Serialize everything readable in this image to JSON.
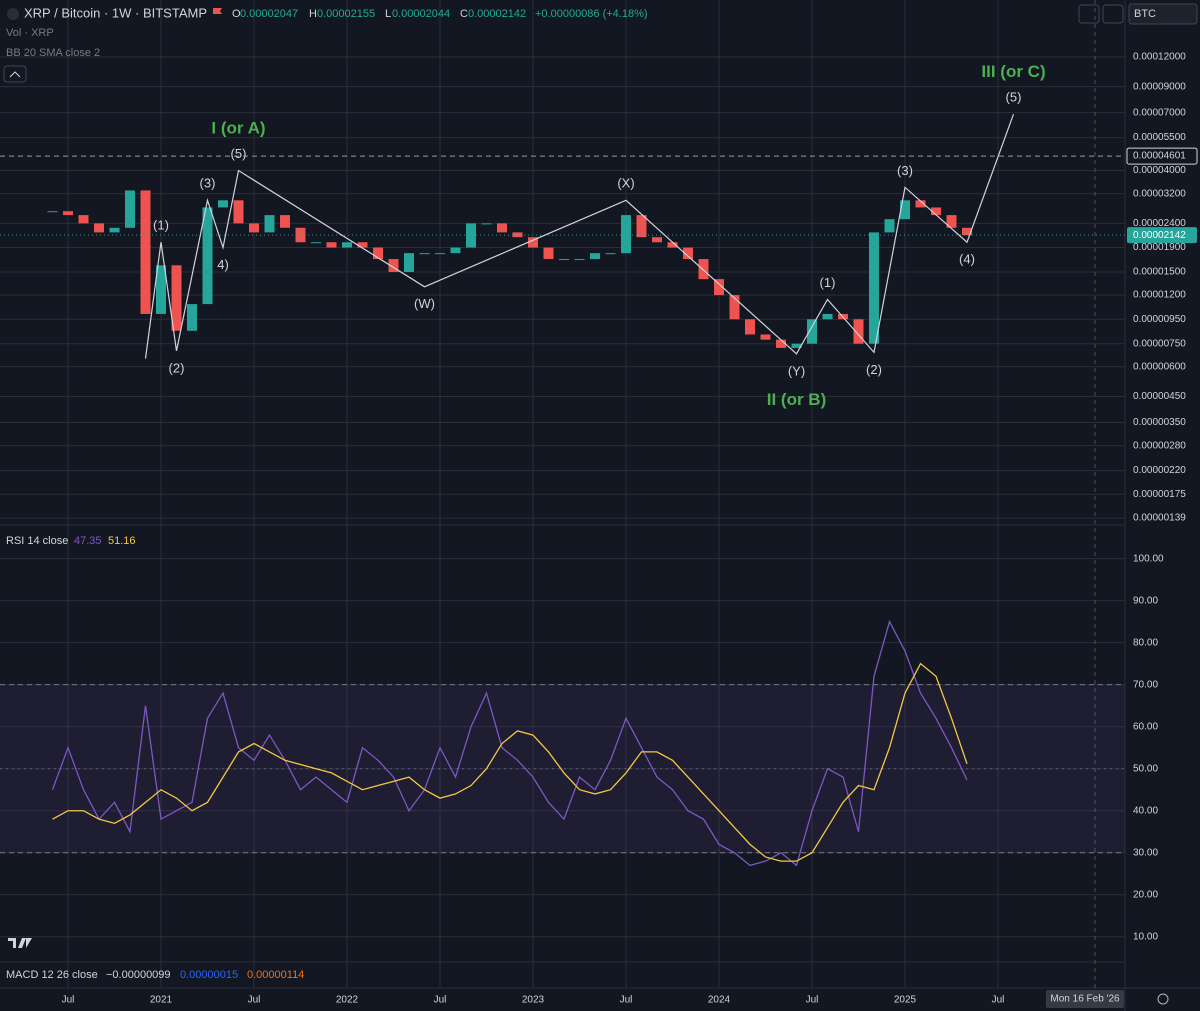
{
  "header": {
    "symbol": "XRP / Bitcoin · 1W · BITSTAMP",
    "ohlc": [
      {
        "key": "O",
        "value": "0.00002047"
      },
      {
        "key": "H",
        "value": "0.00002155"
      },
      {
        "key": "L",
        "value": "0.00002044"
      },
      {
        "key": "C",
        "value": "0.00002142"
      }
    ],
    "change": "+0.00000086 (+4.18%)",
    "indicators": [
      "Vol · XRP",
      "BB 20 SMA close 2"
    ],
    "currency": "BTC",
    "macd": {
      "title": "MACD 12 26 close",
      "values": [
        "−0.00000099",
        "0.00000015",
        "0.00000114"
      ]
    },
    "crosshair_label": "Mon 16 Feb '26"
  },
  "chart_data": [
    {
      "type": "candle-line",
      "log": true,
      "grid": true,
      "x": [
        "2020-06",
        "2020-07",
        "2020-08",
        "2020-09",
        "2020-10",
        "2020-11",
        "2020-12",
        "2021-01",
        "2021-02",
        "2021-03",
        "2021-04",
        "2021-05",
        "2021-06",
        "2021-07",
        "2021-08",
        "2021-09",
        "2021-10",
        "2021-11",
        "2021-12",
        "2022-01",
        "2022-02",
        "2022-03",
        "2022-04",
        "2022-05",
        "2022-06",
        "2022-07",
        "2022-08",
        "2022-09",
        "2022-10",
        "2022-11",
        "2022-12",
        "2023-01",
        "2023-02",
        "2023-03",
        "2023-04",
        "2023-05",
        "2023-06",
        "2023-07",
        "2023-08",
        "2023-09",
        "2023-10",
        "2023-11",
        "2023-12",
        "2024-01",
        "2024-02",
        "2024-03",
        "2024-04",
        "2024-05",
        "2024-06",
        "2024-07",
        "2024-08",
        "2024-09",
        "2024-10",
        "2024-11",
        "2024-12",
        "2025-01",
        "2025-02",
        "2025-03",
        "2025-04",
        "2025-05"
      ],
      "values": [
        2.7e-05,
        2.6e-05,
        2.4e-05,
        2.2e-05,
        2.3e-05,
        3.3e-05,
        1e-05,
        1.6e-05,
        8.5e-06,
        1.1e-05,
        2.8e-05,
        3e-05,
        2.4e-05,
        2.2e-05,
        2.6e-05,
        2.3e-05,
        2e-05,
        2e-05,
        1.9e-05,
        2e-05,
        1.9e-05,
        1.7e-05,
        1.5e-05,
        1.8e-05,
        1.8e-05,
        1.8e-05,
        1.9e-05,
        2.4e-05,
        2.4e-05,
        2.2e-05,
        2.1e-05,
        1.9e-05,
        1.7e-05,
        1.7e-05,
        1.7e-05,
        1.8e-05,
        1.8e-05,
        2.6e-05,
        2.1e-05,
        2e-05,
        1.9e-05,
        1.7e-05,
        1.4e-05,
        1.2e-05,
        9.5e-06,
        8.2e-06,
        7.8e-06,
        7.2e-06,
        7.5e-06,
        9.5e-06,
        1e-05,
        9.5e-06,
        7.5e-06,
        2.2e-05,
        2.5e-05,
        3e-05,
        2.8e-05,
        2.6e-05,
        2.3e-05,
        2.142e-05
      ],
      "up_color": "#26a69a",
      "down_color": "#ef5350",
      "xlim": [
        "2020-03",
        "2026-03"
      ],
      "xticks": [
        {
          "value": "2020-07",
          "label": "Jul"
        },
        {
          "value": "2021-01",
          "label": "2021"
        },
        {
          "value": "2021-07",
          "label": "Jul"
        },
        {
          "value": "2022-01",
          "label": "2022"
        },
        {
          "value": "2022-07",
          "label": "Jul"
        },
        {
          "value": "2023-01",
          "label": "2023"
        },
        {
          "value": "2023-07",
          "label": "Jul"
        },
        {
          "value": "2024-01",
          "label": "2024"
        },
        {
          "value": "2024-07",
          "label": "Jul"
        },
        {
          "value": "2025-01",
          "label": "2025"
        },
        {
          "value": "2025-07",
          "label": "Jul"
        }
      ],
      "ylim": [
        1.3e-06,
        0.000208
      ],
      "yticks": [
        {
          "value": 0.00012,
          "label": "0.00012000"
        },
        {
          "value": 9e-05,
          "label": "0.00009000"
        },
        {
          "value": 7e-05,
          "label": "0.00007000"
        },
        {
          "value": 5.5e-05,
          "label": "0.00005500"
        },
        {
          "value": 4e-05,
          "label": "0.00004000"
        },
        {
          "value": 3.2e-05,
          "label": "0.00003200"
        },
        {
          "value": 2.4e-05,
          "label": "0.00002400"
        },
        {
          "value": 1.9e-05,
          "label": "0.00001900"
        },
        {
          "value": 1.5e-05,
          "label": "0.00001500"
        },
        {
          "value": 1.2e-05,
          "label": "0.00001200"
        },
        {
          "value": 9.5e-06,
          "label": "0.00000950"
        },
        {
          "value": 7.5e-06,
          "label": "0.00000750"
        },
        {
          "value": 6e-06,
          "label": "0.00000600"
        },
        {
          "value": 4.5e-06,
          "label": "0.00000450"
        },
        {
          "value": 3.5e-06,
          "label": "0.00000350"
        },
        {
          "value": 2.8e-06,
          "label": "0.00000280"
        },
        {
          "value": 2.2e-06,
          "label": "0.00000220"
        },
        {
          "value": 1.75e-06,
          "label": "0.00000175"
        },
        {
          "value": 1.39e-06,
          "label": "0.00000139"
        }
      ],
      "marked_level": {
        "value": 4.601e-05,
        "label": "0.00004601"
      },
      "last_price": {
        "value": 2.142e-05,
        "label": "0.00002142"
      },
      "waves": {
        "color": "#d1d4dc",
        "degree_color": "#4caf50",
        "points": [
          {
            "x": "2020-12",
            "y": 6.5e-06,
            "label": null
          },
          {
            "x": "2021-01",
            "y": 2e-05,
            "label": "(1)"
          },
          {
            "x": "2021-02",
            "y": 7e-06,
            "label": "(2)"
          },
          {
            "x": "2021-04",
            "y": 3e-05,
            "label": "(3)"
          },
          {
            "x": "2021-05",
            "y": 1.9e-05,
            "label": "4)"
          },
          {
            "x": "2021-06",
            "y": 4e-05,
            "label": "(5)",
            "degree": "I (or A)"
          },
          {
            "x": "2022-06",
            "y": 1.3e-05,
            "label": "(W)"
          },
          {
            "x": "2023-07",
            "y": 3e-05,
            "label": "(X)"
          },
          {
            "x": "2024-06",
            "y": 6.8e-06,
            "label": "(Y)",
            "degree": "II (or B)"
          },
          {
            "x": "2024-08",
            "y": 1.15e-05,
            "label": "(1)"
          },
          {
            "x": "2024-11",
            "y": 6.9e-06,
            "label": "(2)"
          },
          {
            "x": "2025-01",
            "y": 3.4e-05,
            "label": "(3)"
          },
          {
            "x": "2025-05",
            "y": 2e-05,
            "label": "(4)"
          },
          {
            "x": "2025-08",
            "y": 6.9e-05,
            "label": "(5)",
            "degree": "III (or C)"
          }
        ]
      }
    },
    {
      "type": "line",
      "title": "RSI 14 close",
      "grid": true,
      "x": [
        "2020-06",
        "2020-07",
        "2020-08",
        "2020-09",
        "2020-10",
        "2020-11",
        "2020-12",
        "2021-01",
        "2021-02",
        "2021-03",
        "2021-04",
        "2021-05",
        "2021-06",
        "2021-07",
        "2021-08",
        "2021-09",
        "2021-10",
        "2021-11",
        "2021-12",
        "2022-01",
        "2022-02",
        "2022-03",
        "2022-04",
        "2022-05",
        "2022-06",
        "2022-07",
        "2022-08",
        "2022-09",
        "2022-10",
        "2022-11",
        "2022-12",
        "2023-01",
        "2023-02",
        "2023-03",
        "2023-04",
        "2023-05",
        "2023-06",
        "2023-07",
        "2023-08",
        "2023-09",
        "2023-10",
        "2023-11",
        "2023-12",
        "2024-01",
        "2024-02",
        "2024-03",
        "2024-04",
        "2024-05",
        "2024-06",
        "2024-07",
        "2024-08",
        "2024-09",
        "2024-10",
        "2024-11",
        "2024-12",
        "2025-01",
        "2025-02",
        "2025-03",
        "2025-04",
        "2025-05"
      ],
      "series": [
        {
          "color": "#7e57c2",
          "value_label": "47.35",
          "values": [
            45,
            55,
            45,
            38,
            42,
            35,
            65,
            38,
            40,
            42,
            62,
            68,
            55,
            52,
            58,
            52,
            45,
            48,
            45,
            42,
            55,
            52,
            48,
            40,
            45,
            55,
            48,
            60,
            68,
            55,
            52,
            48,
            42,
            38,
            48,
            45,
            52,
            62,
            55,
            48,
            45,
            40,
            38,
            32,
            30,
            27,
            28,
            30,
            27,
            40,
            50,
            48,
            35,
            72,
            85,
            78,
            68,
            62,
            55,
            47.35
          ]
        },
        {
          "color": "#f5c842",
          "value_label": "51.16",
          "values": [
            38,
            40,
            40,
            38,
            37,
            39,
            42,
            45,
            43,
            40,
            42,
            48,
            54,
            56,
            54,
            52,
            51,
            50,
            49,
            47,
            45,
            46,
            47,
            48,
            45,
            43,
            44,
            46,
            50,
            56,
            59,
            58,
            54,
            49,
            45,
            44,
            45,
            49,
            54,
            54,
            52,
            48,
            44,
            40,
            36,
            32,
            29,
            28,
            28,
            30,
            36,
            42,
            46,
            45,
            55,
            68,
            75,
            72,
            62,
            51.16
          ]
        }
      ],
      "band": [
        30,
        70
      ],
      "midline": 50,
      "band_color": "#7e57c2",
      "ylim": [
        4,
        108
      ],
      "yticks": [
        {
          "value": 10,
          "label": "10.00"
        },
        {
          "value": 20,
          "label": "20.00"
        },
        {
          "value": 30,
          "label": "30.00"
        },
        {
          "value": 40,
          "label": "40.00"
        },
        {
          "value": 50,
          "label": "50.00"
        },
        {
          "value": 60,
          "label": "60.00"
        },
        {
          "value": 70,
          "label": "70.00"
        },
        {
          "value": 80,
          "label": "80.00"
        },
        {
          "value": 90,
          "label": "90.00"
        },
        {
          "value": 100,
          "label": "100.00"
        }
      ]
    }
  ]
}
